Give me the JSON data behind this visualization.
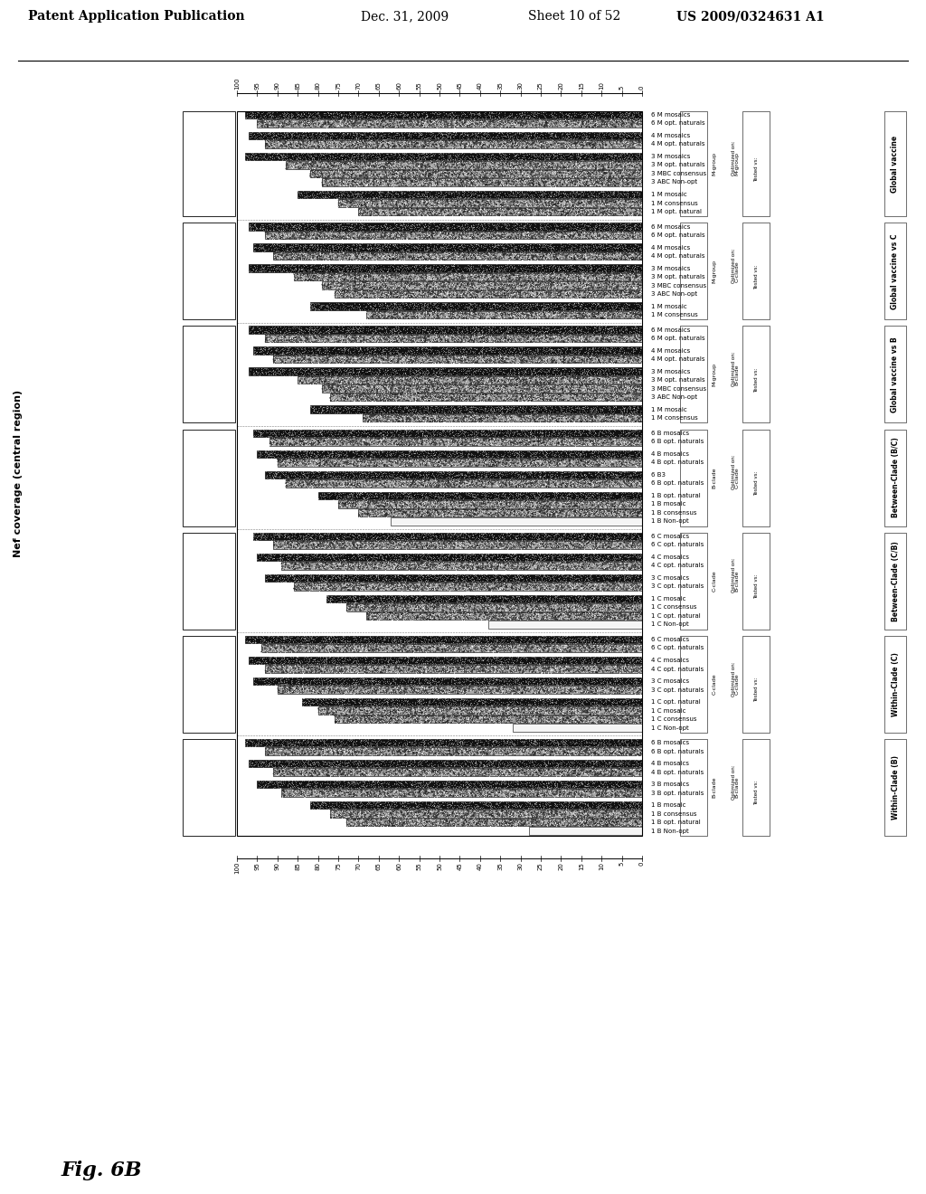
{
  "title_header": "Patent Application Publication",
  "title_date": "Dec. 31, 2009",
  "title_sheet": "Sheet 10 of 52",
  "title_patent": "US 2009/0324631 A1",
  "fig_label": "Fig. 6B",
  "y_axis_label": "Nef coverage (central region)",
  "x_axis_ticks": [
    100,
    95,
    90,
    85,
    80,
    75,
    70,
    65,
    60,
    55,
    50,
    45,
    40,
    35,
    30,
    25,
    20,
    15,
    10,
    5,
    0
  ],
  "sections": [
    {
      "section_label": "Global vaccine",
      "optimized_on": "M-group",
      "tested_vs": "M-group",
      "groups": [
        {
          "labels": [
            "6 M mosaics",
            "6 M opt. naturals"
          ],
          "bars": [
            {
              "value": 98,
              "style": "dark"
            },
            {
              "value": 95,
              "style": "spotted"
            }
          ]
        },
        {
          "labels": [
            "4 M mosaics",
            "4 M opt. naturals"
          ],
          "bars": [
            {
              "value": 97,
              "style": "dark"
            },
            {
              "value": 93,
              "style": "spotted"
            }
          ]
        },
        {
          "labels": [
            "3 M mosaics",
            "3 M opt. naturals",
            "3 MBC consensus",
            "3 ABC Non-opt"
          ],
          "bars": [
            {
              "value": 98,
              "style": "dark"
            },
            {
              "value": 88,
              "style": "spotted"
            },
            {
              "value": 82,
              "style": "spotted"
            },
            {
              "value": 79,
              "style": "spotted"
            }
          ]
        },
        {
          "labels": [
            "1 M mosaic",
            "1 M consensus",
            "1 M opt. natural"
          ],
          "bars": [
            {
              "value": 85,
              "style": "dark"
            },
            {
              "value": 75,
              "style": "spotted"
            },
            {
              "value": 70,
              "style": "spotted"
            }
          ]
        }
      ]
    },
    {
      "section_label": "Global vaccine vs C",
      "optimized_on": "M-group",
      "tested_vs": "C-clade",
      "groups": [
        {
          "labels": [
            "6 M mosaics",
            "6 M opt. naturals"
          ],
          "bars": [
            {
              "value": 97,
              "style": "dark"
            },
            {
              "value": 93,
              "style": "spotted"
            }
          ]
        },
        {
          "labels": [
            "4 M mosaics",
            "4 M opt. naturals"
          ],
          "bars": [
            {
              "value": 96,
              "style": "dark"
            },
            {
              "value": 91,
              "style": "spotted"
            }
          ]
        },
        {
          "labels": [
            "3 M mosaics",
            "3 M opt. naturals",
            "3 MBC consensus",
            "3 ABC Non-opt"
          ],
          "bars": [
            {
              "value": 97,
              "style": "dark"
            },
            {
              "value": 86,
              "style": "spotted"
            },
            {
              "value": 79,
              "style": "spotted"
            },
            {
              "value": 76,
              "style": "spotted"
            }
          ]
        },
        {
          "labels": [
            "1 M mosaic",
            "1 M consensus"
          ],
          "bars": [
            {
              "value": 82,
              "style": "dark"
            },
            {
              "value": 68,
              "style": "spotted"
            }
          ]
        }
      ]
    },
    {
      "section_label": "Global vaccine vs B",
      "optimized_on": "M-group",
      "tested_vs": "B-clade",
      "groups": [
        {
          "labels": [
            "6 M mosaics",
            "6 M opt. naturals"
          ],
          "bars": [
            {
              "value": 97,
              "style": "dark"
            },
            {
              "value": 93,
              "style": "spotted"
            }
          ]
        },
        {
          "labels": [
            "4 M mosaics",
            "4 M opt. naturals"
          ],
          "bars": [
            {
              "value": 96,
              "style": "dark"
            },
            {
              "value": 91,
              "style": "spotted"
            }
          ]
        },
        {
          "labels": [
            "3 M mosaics",
            "3 M opt. naturals",
            "3 MBC consensus",
            "3 ABC Non-opt"
          ],
          "bars": [
            {
              "value": 97,
              "style": "dark"
            },
            {
              "value": 85,
              "style": "spotted"
            },
            {
              "value": 79,
              "style": "spotted"
            },
            {
              "value": 77,
              "style": "spotted"
            }
          ]
        },
        {
          "labels": [
            "1 M mosaic",
            "1 M consensus"
          ],
          "bars": [
            {
              "value": 82,
              "style": "dark"
            },
            {
              "value": 69,
              "style": "spotted"
            }
          ]
        }
      ]
    },
    {
      "section_label": "Between-Clade (B/C)",
      "optimized_on": "B-clade",
      "tested_vs": "C-clade",
      "groups": [
        {
          "labels": [
            "6 B mosaics",
            "6 B opt. naturals"
          ],
          "bars": [
            {
              "value": 96,
              "style": "dark"
            },
            {
              "value": 92,
              "style": "spotted"
            }
          ]
        },
        {
          "labels": [
            "4 B mosaics",
            "4 B opt. naturals"
          ],
          "bars": [
            {
              "value": 95,
              "style": "dark"
            },
            {
              "value": 90,
              "style": "spotted"
            }
          ]
        },
        {
          "labels": [
            "6 B3",
            "6 B opt. naturals"
          ],
          "bars": [
            {
              "value": 93,
              "style": "dark"
            },
            {
              "value": 88,
              "style": "spotted"
            }
          ]
        },
        {
          "labels": [
            "1 B opt. natural",
            "1 B mosaic",
            "1 B consensus",
            "1 B Non-opt"
          ],
          "bars": [
            {
              "value": 80,
              "style": "dark"
            },
            {
              "value": 75,
              "style": "spotted"
            },
            {
              "value": 70,
              "style": "spotted"
            },
            {
              "value": 62,
              "style": "white"
            }
          ]
        }
      ]
    },
    {
      "section_label": "Between-Clade (C/B)",
      "optimized_on": "C-clade",
      "tested_vs": "B-clade",
      "groups": [
        {
          "labels": [
            "6 C mosaics",
            "6 C opt. naturals"
          ],
          "bars": [
            {
              "value": 96,
              "style": "dark"
            },
            {
              "value": 91,
              "style": "spotted"
            }
          ]
        },
        {
          "labels": [
            "4 C mosaics",
            "4 C opt. naturals"
          ],
          "bars": [
            {
              "value": 95,
              "style": "dark"
            },
            {
              "value": 89,
              "style": "spotted"
            }
          ]
        },
        {
          "labels": [
            "3 C mosaics",
            "3 C opt. naturals"
          ],
          "bars": [
            {
              "value": 93,
              "style": "dark"
            },
            {
              "value": 86,
              "style": "spotted"
            }
          ]
        },
        {
          "labels": [
            "1 C mosaic",
            "1 C consensus",
            "1 C opt. natural",
            "1 C Non-opt"
          ],
          "bars": [
            {
              "value": 78,
              "style": "dark"
            },
            {
              "value": 73,
              "style": "spotted"
            },
            {
              "value": 68,
              "style": "spotted"
            },
            {
              "value": 38,
              "style": "white"
            }
          ]
        }
      ]
    },
    {
      "section_label": "Within-Clade (C)",
      "optimized_on": "C-clade",
      "tested_vs": "C-clade",
      "groups": [
        {
          "labels": [
            "6 C mosaics",
            "6 C opt. naturals"
          ],
          "bars": [
            {
              "value": 98,
              "style": "dark"
            },
            {
              "value": 94,
              "style": "spotted"
            }
          ]
        },
        {
          "labels": [
            "4 C mosaics",
            "4 C opt. naturals"
          ],
          "bars": [
            {
              "value": 97,
              "style": "dark"
            },
            {
              "value": 93,
              "style": "spotted"
            }
          ]
        },
        {
          "labels": [
            "3 C mosaics",
            "3 C opt. naturals"
          ],
          "bars": [
            {
              "value": 96,
              "style": "dark"
            },
            {
              "value": 90,
              "style": "spotted"
            }
          ]
        },
        {
          "labels": [
            "1 C opt. natural",
            "1 C mosaic",
            "1 C consensus",
            "1 C Non-opt"
          ],
          "bars": [
            {
              "value": 84,
              "style": "dark"
            },
            {
              "value": 80,
              "style": "spotted"
            },
            {
              "value": 76,
              "style": "spotted"
            },
            {
              "value": 32,
              "style": "white"
            }
          ]
        }
      ]
    },
    {
      "section_label": "Within-Clade (B)",
      "optimized_on": "B-clade",
      "tested_vs": "B-clade",
      "groups": [
        {
          "labels": [
            "6 B mosaics",
            "6 B opt. naturals"
          ],
          "bars": [
            {
              "value": 98,
              "style": "dark"
            },
            {
              "value": 93,
              "style": "spotted"
            }
          ]
        },
        {
          "labels": [
            "4 B mosaics",
            "4 B opt. naturals"
          ],
          "bars": [
            {
              "value": 97,
              "style": "dark"
            },
            {
              "value": 91,
              "style": "spotted"
            }
          ]
        },
        {
          "labels": [
            "3 B mosaics",
            "3 B opt. naturals"
          ],
          "bars": [
            {
              "value": 95,
              "style": "dark"
            },
            {
              "value": 89,
              "style": "spotted"
            }
          ]
        },
        {
          "labels": [
            "1 B mosaic",
            "1 B consensus",
            "1 B opt. natural",
            "1 B Non-opt"
          ],
          "bars": [
            {
              "value": 82,
              "style": "dark"
            },
            {
              "value": 77,
              "style": "spotted"
            },
            {
              "value": 73,
              "style": "spotted"
            },
            {
              "value": 28,
              "style": "white"
            }
          ]
        }
      ]
    }
  ]
}
